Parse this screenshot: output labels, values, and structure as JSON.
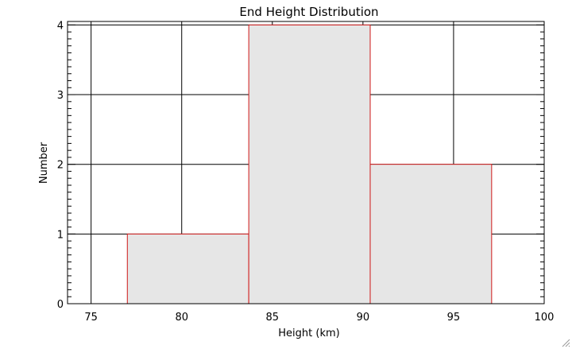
{
  "chart_data": {
    "type": "bar",
    "title": "End Height Distribution",
    "xlabel": "Height (km)",
    "ylabel": "Number",
    "xlim": [
      73.7,
      100
    ],
    "ylim": [
      0,
      4.05
    ],
    "x_ticks": [
      75,
      80,
      85,
      90,
      95,
      100
    ],
    "y_ticks": [
      0,
      1,
      2,
      3,
      4
    ],
    "bins": [
      {
        "x0": 77.0,
        "x1": 83.7,
        "value": 1
      },
      {
        "x0": 83.7,
        "x1": 90.4,
        "value": 4
      },
      {
        "x0": 90.4,
        "x1": 97.1,
        "value": 2
      }
    ],
    "grid": true,
    "colors": {
      "bar_fill": "#e6e6e6",
      "bar_edge": "#d01818",
      "grid": "#000000",
      "axes": "#000000"
    }
  }
}
